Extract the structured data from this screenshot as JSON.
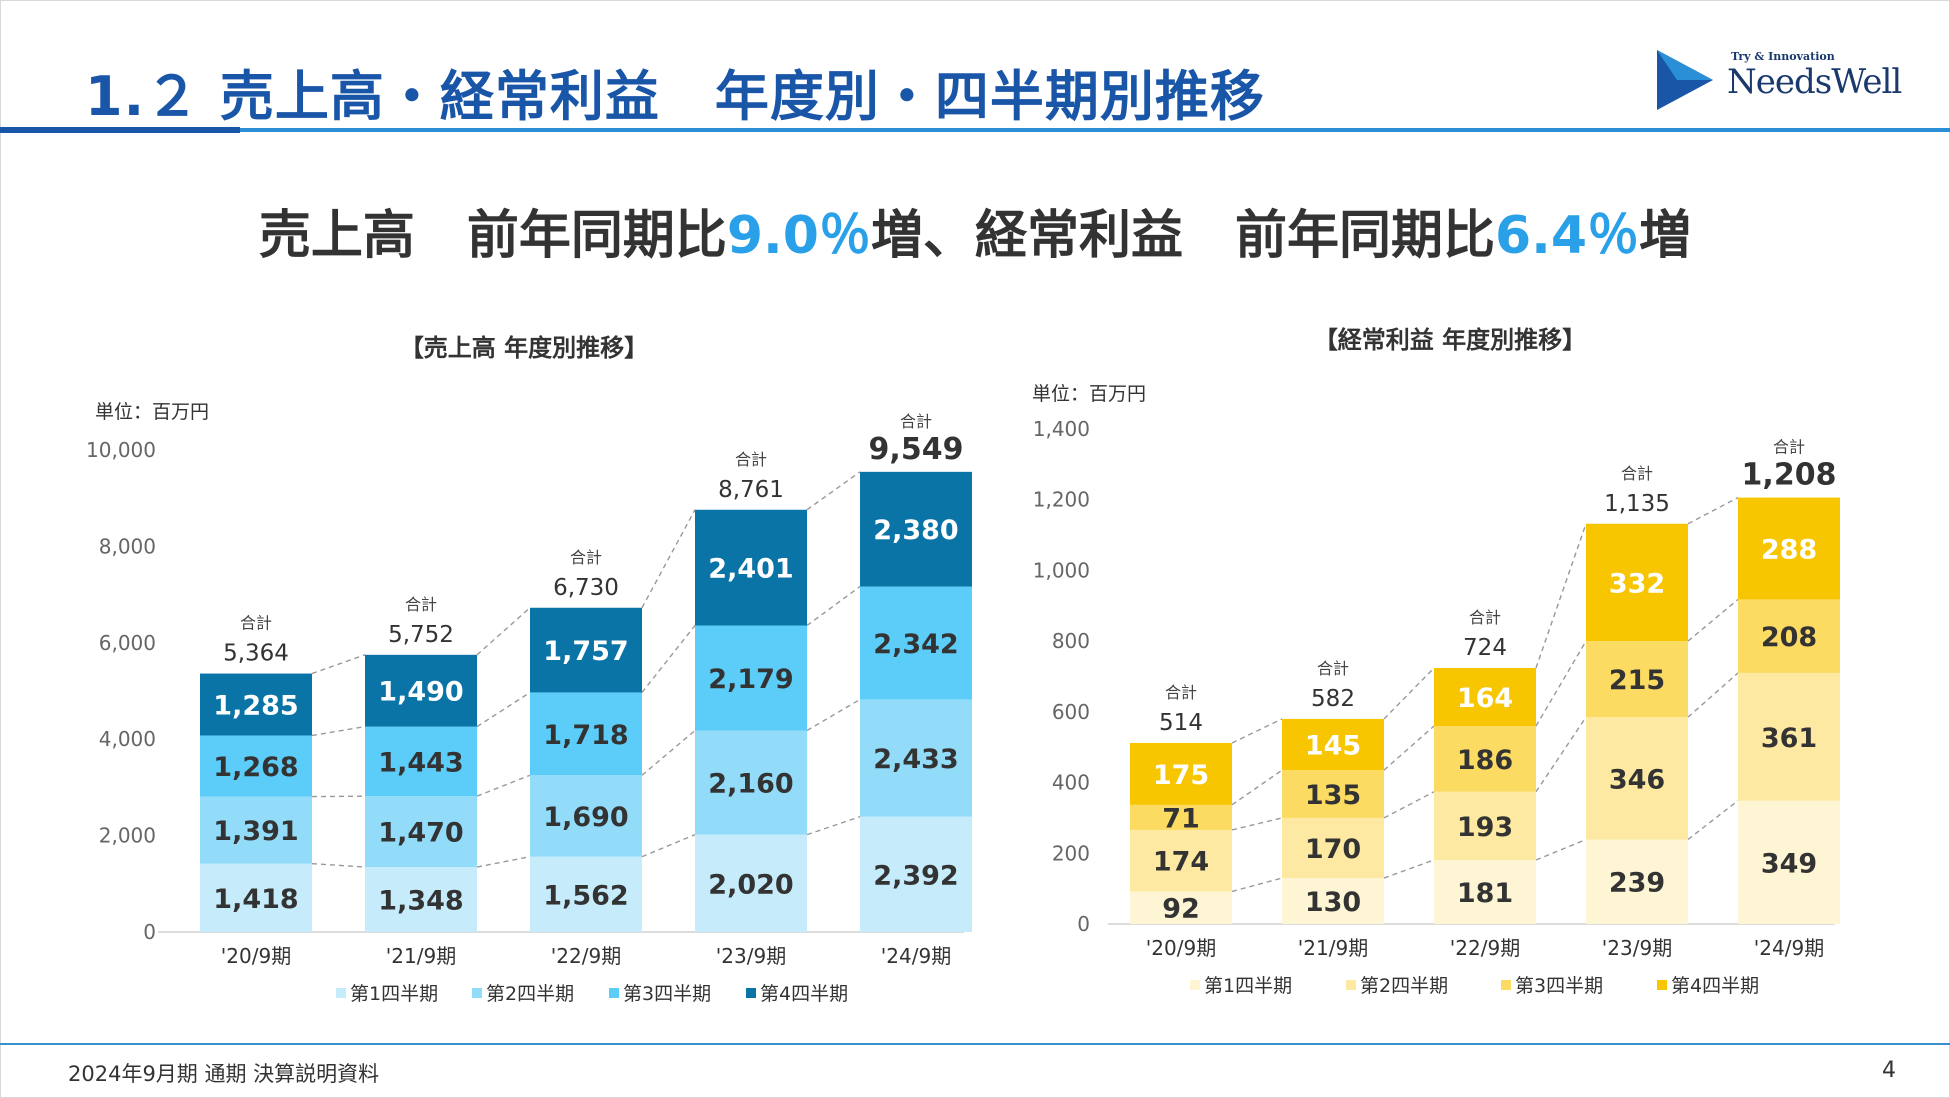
{
  "slide": {
    "title": "1.２ 売上高・経常利益　年度別・四半期別推移",
    "headline_parts": [
      "売上高　前年同期比",
      "9.0％",
      "増、経常利益　前年同期比",
      "6.4％",
      "増"
    ],
    "footer": "2024年9月期 通期 決算説明資料",
    "page_number": "4",
    "logo_tagline": "Try & Innovation",
    "logo_name": "NeedsWell"
  },
  "colors": {
    "title_blue": "#1a56a8",
    "accent_cyan": "#2aa0e8",
    "sales_q1": "#c6ecfb",
    "sales_q2": "#92dcf9",
    "sales_q3": "#5ccdf8",
    "sales_q4": "#0b74a6",
    "profit_q1": "#fdf5d4",
    "profit_q2": "#fde9a1",
    "profit_q3": "#fcdb63",
    "profit_q4": "#f8c600"
  },
  "chart_data": [
    {
      "type": "bar",
      "stacked": true,
      "title": "【売上高 年度別推移】",
      "unit_label": "単位：百万円",
      "categories": [
        "'20/9期",
        "'21/9期",
        "'22/9期",
        "'23/9期",
        "'24/9期"
      ],
      "series": [
        {
          "name": "第1四半期",
          "values": [
            1418,
            1348,
            1562,
            2020,
            2392
          ]
        },
        {
          "name": "第2四半期",
          "values": [
            1391,
            1470,
            1690,
            2160,
            2433
          ]
        },
        {
          "name": "第3四半期",
          "values": [
            1268,
            1443,
            1718,
            2179,
            2342
          ]
        },
        {
          "name": "第4四半期",
          "values": [
            1285,
            1490,
            1757,
            2401,
            2380
          ]
        }
      ],
      "totals_label": "合計",
      "totals": [
        "5,364",
        "5,752",
        "6,730",
        "8,761",
        "9,549"
      ],
      "ylim": [
        0,
        10000
      ],
      "yticks": [
        0,
        2000,
        4000,
        6000,
        8000,
        10000
      ],
      "ytick_labels": [
        "0",
        "2,000",
        "4,000",
        "6,000",
        "8,000",
        "10,000"
      ],
      "legend_position": "bottom"
    },
    {
      "type": "bar",
      "stacked": true,
      "title": "【経常利益 年度別推移】",
      "unit_label": "単位：百万円",
      "categories": [
        "'20/9期",
        "'21/9期",
        "'22/9期",
        "'23/9期",
        "'24/9期"
      ],
      "series": [
        {
          "name": "第1四半期",
          "values": [
            92,
            130,
            181,
            239,
            349
          ]
        },
        {
          "name": "第2四半期",
          "values": [
            174,
            170,
            193,
            346,
            361
          ]
        },
        {
          "name": "第3四半期",
          "values": [
            71,
            135,
            186,
            215,
            208
          ]
        },
        {
          "name": "第4四半期",
          "values": [
            175,
            145,
            164,
            332,
            288
          ]
        }
      ],
      "totals_label": "合計",
      "totals": [
        "514",
        "582",
        "724",
        "1,135",
        "1,208"
      ],
      "ylim": [
        0,
        1400
      ],
      "yticks": [
        0,
        200,
        400,
        600,
        800,
        1000,
        1200,
        1400
      ],
      "ytick_labels": [
        "0",
        "200",
        "400",
        "600",
        "800",
        "1,000",
        "1,200",
        "1,400"
      ],
      "legend_position": "bottom"
    }
  ]
}
